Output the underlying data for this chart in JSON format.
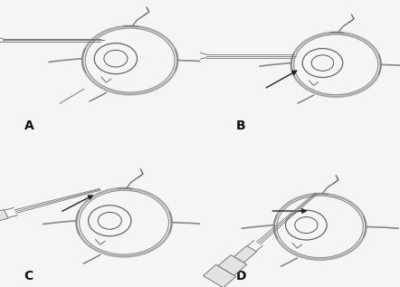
{
  "background_color": "#f5f5f5",
  "panel_labels": [
    "A",
    "B",
    "C",
    "D"
  ],
  "figsize": [
    4.42,
    3.17
  ],
  "dpi": 100,
  "text_color": "#111111",
  "label_fontsize": 10,
  "line_color": "#555555",
  "line_color_dark": "#222222",
  "eye_color": "#888888",
  "eye_lw": 1.0,
  "syringe_color": "#777777"
}
